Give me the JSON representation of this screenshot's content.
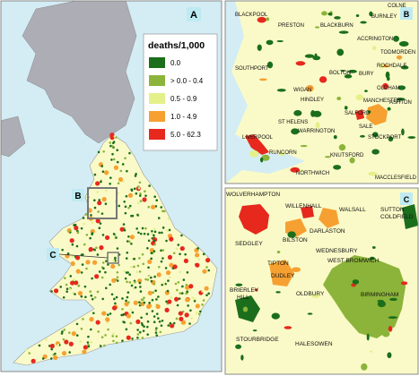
{
  "panels": {
    "a": "A",
    "b": "B",
    "c": "C"
  },
  "inset_labels": {
    "b": "B",
    "c": "C"
  },
  "legend": {
    "title": "deaths/1,000",
    "items": [
      {
        "label": "0.0",
        "color": "#1b6e1b"
      },
      {
        "label": "> 0.0 - 0.4",
        "color": "#8cb43a"
      },
      {
        "label": "0.5 - 0.9",
        "color": "#e4f08a"
      },
      {
        "label": "1.0 - 4.9",
        "color": "#f6a031"
      },
      {
        "label": "5.0 - 62.3",
        "color": "#e6281d"
      }
    ]
  },
  "panel_b_places": [
    "BLACKPOOL",
    "PRESTON",
    "BLACKBURN",
    "BURNLEY",
    "COLNE",
    "ACCRINGTON",
    "TODMORDEN",
    "SOUTHPORT",
    "ROCHDALE",
    "BURY",
    "BOLTON",
    "WIGAN",
    "OLDHAM",
    "MANCHESTER",
    "HINDLEY",
    "ASHTON",
    "SALFORD",
    "LIVERPOOL",
    "ST HELENS",
    "WARRINGTON",
    "SALE",
    "STOCKPORT",
    "RUNCORN",
    "KNUTSFORD",
    "NORTHWICH",
    "MACCLESFIELD"
  ],
  "panel_c_places": [
    "WOLVERHAMPTON",
    "WILLENHALL",
    "WALSALL",
    "SUTTON COLDFIELD",
    "DARLASTON",
    "BILSTON",
    "SEDGLEY",
    "WEDNESBURY",
    "TIPTON",
    "WEST BROMWICH",
    "DUDLEY",
    "BRIERLEY HILL",
    "OLDBURY",
    "BIRMINGHAM",
    "STOURBRIDGE",
    "HALESOWEN"
  ]
}
